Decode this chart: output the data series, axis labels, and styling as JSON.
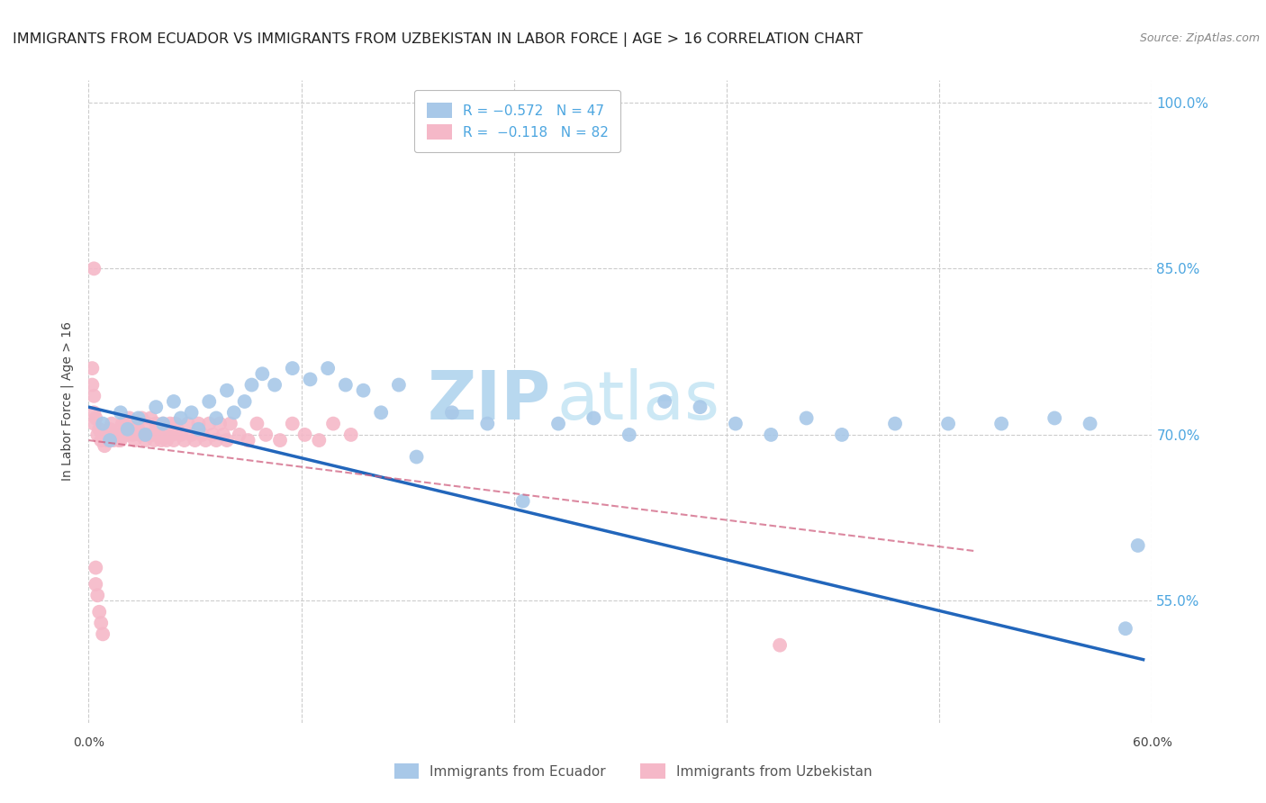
{
  "title": "IMMIGRANTS FROM ECUADOR VS IMMIGRANTS FROM UZBEKISTAN IN LABOR FORCE | AGE > 16 CORRELATION CHART",
  "source": "Source: ZipAtlas.com",
  "ylabel": "In Labor Force | Age > 16",
  "xlim": [
    0.0,
    0.6
  ],
  "ylim": [
    0.44,
    1.02
  ],
  "ytick_values": [
    0.55,
    0.7,
    0.85,
    1.0
  ],
  "xtick_values": [
    0.0,
    0.12,
    0.24,
    0.36,
    0.48,
    0.6
  ],
  "xtick_show": [
    0,
    5
  ],
  "ecuador_color": "#a8c8e8",
  "ecuador_line_color": "#2266bb",
  "uzbekistan_color": "#f5b8c8",
  "uzbekistan_line_color": "#d06080",
  "ecuador_R": -0.572,
  "ecuador_N": 47,
  "uzbekistan_R": -0.118,
  "uzbekistan_N": 82,
  "ecuador_line_x0": 0.0,
  "ecuador_line_y0": 0.725,
  "ecuador_line_x1": 0.595,
  "ecuador_line_y1": 0.497,
  "uzbekistan_line_x0": 0.0,
  "uzbekistan_line_y0": 0.695,
  "uzbekistan_line_x1": 0.5,
  "uzbekistan_line_y1": 0.595,
  "ecuador_scatter_x": [
    0.008,
    0.012,
    0.018,
    0.022,
    0.028,
    0.032,
    0.038,
    0.042,
    0.048,
    0.052,
    0.058,
    0.062,
    0.068,
    0.072,
    0.078,
    0.082,
    0.088,
    0.092,
    0.098,
    0.105,
    0.115,
    0.125,
    0.135,
    0.145,
    0.155,
    0.165,
    0.175,
    0.185,
    0.205,
    0.225,
    0.245,
    0.265,
    0.285,
    0.305,
    0.325,
    0.345,
    0.365,
    0.385,
    0.405,
    0.425,
    0.455,
    0.485,
    0.515,
    0.545,
    0.565,
    0.585,
    0.592
  ],
  "ecuador_scatter_y": [
    0.71,
    0.695,
    0.72,
    0.705,
    0.715,
    0.7,
    0.725,
    0.71,
    0.73,
    0.715,
    0.72,
    0.705,
    0.73,
    0.715,
    0.74,
    0.72,
    0.73,
    0.745,
    0.755,
    0.745,
    0.76,
    0.75,
    0.76,
    0.745,
    0.74,
    0.72,
    0.745,
    0.68,
    0.72,
    0.71,
    0.64,
    0.71,
    0.715,
    0.7,
    0.73,
    0.725,
    0.71,
    0.7,
    0.715,
    0.7,
    0.71,
    0.71,
    0.71,
    0.715,
    0.71,
    0.525,
    0.6
  ],
  "uzbekistan_scatter_x": [
    0.003,
    0.005,
    0.007,
    0.009,
    0.012,
    0.014,
    0.016,
    0.018,
    0.02,
    0.022,
    0.004,
    0.006,
    0.008,
    0.01,
    0.013,
    0.015,
    0.017,
    0.019,
    0.021,
    0.023,
    0.025,
    0.026,
    0.027,
    0.028,
    0.029,
    0.03,
    0.031,
    0.032,
    0.033,
    0.034,
    0.035,
    0.036,
    0.037,
    0.038,
    0.039,
    0.04,
    0.041,
    0.042,
    0.043,
    0.044,
    0.046,
    0.047,
    0.048,
    0.049,
    0.05,
    0.052,
    0.054,
    0.056,
    0.058,
    0.06,
    0.062,
    0.064,
    0.066,
    0.068,
    0.07,
    0.072,
    0.074,
    0.076,
    0.078,
    0.08,
    0.085,
    0.09,
    0.095,
    0.1,
    0.108,
    0.115,
    0.122,
    0.13,
    0.138,
    0.148,
    0.002,
    0.002,
    0.003,
    0.003,
    0.004,
    0.004,
    0.005,
    0.006,
    0.007,
    0.008,
    0.003,
    0.39
  ],
  "uzbekistan_scatter_y": [
    0.71,
    0.7,
    0.695,
    0.69,
    0.705,
    0.695,
    0.7,
    0.695,
    0.71,
    0.7,
    0.715,
    0.705,
    0.7,
    0.695,
    0.71,
    0.7,
    0.695,
    0.71,
    0.705,
    0.715,
    0.7,
    0.695,
    0.71,
    0.705,
    0.7,
    0.715,
    0.7,
    0.695,
    0.71,
    0.7,
    0.715,
    0.7,
    0.695,
    0.71,
    0.705,
    0.7,
    0.695,
    0.71,
    0.7,
    0.695,
    0.71,
    0.7,
    0.695,
    0.71,
    0.705,
    0.7,
    0.695,
    0.71,
    0.7,
    0.695,
    0.71,
    0.7,
    0.695,
    0.71,
    0.7,
    0.695,
    0.71,
    0.7,
    0.695,
    0.71,
    0.7,
    0.695,
    0.71,
    0.7,
    0.695,
    0.71,
    0.7,
    0.695,
    0.71,
    0.7,
    0.76,
    0.745,
    0.735,
    0.72,
    0.58,
    0.565,
    0.555,
    0.54,
    0.53,
    0.52,
    0.85,
    0.51
  ],
  "background_color": "#ffffff",
  "grid_color": "#cccccc",
  "watermark_zip": "ZIP",
  "watermark_atlas": "atlas",
  "watermark_color": "#cce4f5",
  "right_axis_color": "#4da6e0",
  "title_fontsize": 11.5,
  "legend_fontsize": 11
}
